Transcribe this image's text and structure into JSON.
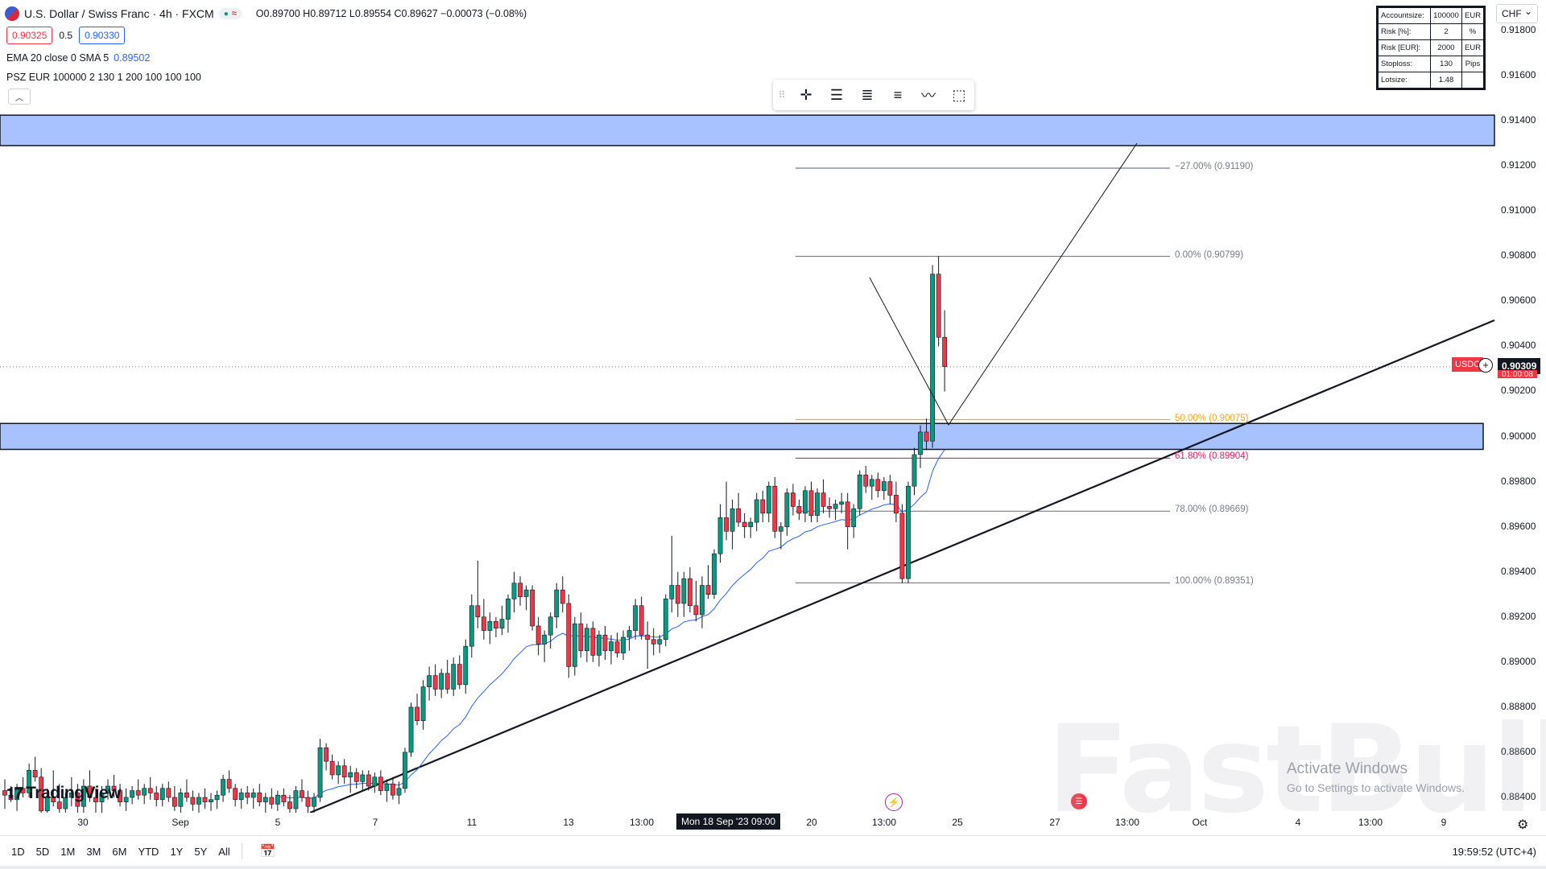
{
  "header": {
    "symbol": "U.S. Dollar / Swiss Franc · 4h · FXCM",
    "ohlc": "O0.89700 H0.89712 L0.89554 C0.89627 −0.00073 (−0.08%)",
    "sell_price": "0.90325",
    "spread": "0.5",
    "buy_price": "0.90330"
  },
  "indicators": {
    "ema_label": "EMA 20 close 0 SMA 5",
    "ema_value": "0.89502",
    "psz_label": "PSZ EUR 100000 2 130 1 200 100 100 100"
  },
  "psz_table": [
    {
      "k": "Accountsize:",
      "v": "100000",
      "u": "EUR"
    },
    {
      "k": "Risk [%]:",
      "v": "2",
      "u": "%"
    },
    {
      "k": "Risk [EUR]:",
      "v": "2000",
      "u": "EUR"
    },
    {
      "k": "Stoploss:",
      "v": "130",
      "u": "Pips"
    },
    {
      "k": "Lotsize:",
      "v": "1.48",
      "u": ""
    }
  ],
  "currency_select": "CHF",
  "y_axis": {
    "ticks": [
      "0.91800",
      "0.91600",
      "0.91400",
      "0.91200",
      "0.91000",
      "0.90800",
      "0.90600",
      "0.90400",
      "0.90200",
      "0.90000",
      "0.89800",
      "0.89600",
      "0.89400",
      "0.89200",
      "0.89000",
      "0.88800",
      "0.88600",
      "0.88400"
    ],
    "last_price": "0.90309",
    "symbol_tag": "USDC",
    "under_price": "01:00:08"
  },
  "x_axis": {
    "ticks": [
      "30",
      "Sep",
      "5",
      "7",
      "11",
      "13",
      "13:00",
      "20",
      "13:00",
      "25",
      "27",
      "13:00",
      "Oct",
      "4",
      "13:00",
      "9"
    ],
    "crosshair_label": "Mon 18 Sep '23   09:00"
  },
  "fib_levels": [
    {
      "label": "−27.00% (0.91190)",
      "price": 0.9119,
      "color": "#787b86"
    },
    {
      "label": "0.00% (0.90799)",
      "price": 0.90799,
      "color": "#787b86"
    },
    {
      "label": "50.00% (0.90075)",
      "price": 0.90075,
      "color": "#f5a623"
    },
    {
      "label": "61.80% (0.89904)",
      "price": 0.89904,
      "color": "#e91e63"
    },
    {
      "label": "78.00% (0.89669)",
      "price": 0.89669,
      "color": "#787b86"
    },
    {
      "label": "100.00% (0.89351)",
      "price": 0.89351,
      "color": "#787b86"
    }
  ],
  "zones": [
    {
      "top": 0.91425,
      "bottom": 0.9129,
      "color": "#a8c1ff"
    },
    {
      "top": 0.90058,
      "bottom": 0.89943,
      "color": "#a8c1ff"
    }
  ],
  "candles": [
    [
      0.8843,
      0.8848,
      0.8835,
      0.8841
    ],
    [
      0.8841,
      0.8845,
      0.8838,
      0.8839
    ],
    [
      0.8839,
      0.8846,
      0.8834,
      0.8844
    ],
    [
      0.8844,
      0.8849,
      0.884,
      0.8842
    ],
    [
      0.8842,
      0.8855,
      0.884,
      0.8852
    ],
    [
      0.8852,
      0.8858,
      0.8847,
      0.8849
    ],
    [
      0.8849,
      0.8853,
      0.883,
      0.8834
    ],
    [
      0.8834,
      0.8844,
      0.8826,
      0.884
    ],
    [
      0.884,
      0.8852,
      0.8836,
      0.8838
    ],
    [
      0.8838,
      0.8846,
      0.8832,
      0.8835
    ],
    [
      0.8835,
      0.8842,
      0.8828,
      0.884
    ],
    [
      0.884,
      0.8849,
      0.8836,
      0.8842
    ],
    [
      0.8842,
      0.8846,
      0.8833,
      0.8836
    ],
    [
      0.8836,
      0.8848,
      0.8831,
      0.8845
    ],
    [
      0.8845,
      0.8852,
      0.8838,
      0.884
    ],
    [
      0.884,
      0.8844,
      0.8832,
      0.8838
    ],
    [
      0.8838,
      0.8845,
      0.8833,
      0.8842
    ],
    [
      0.8842,
      0.8848,
      0.8839,
      0.8845
    ],
    [
      0.8845,
      0.885,
      0.884,
      0.8843
    ],
    [
      0.8843,
      0.8846,
      0.8836,
      0.8838
    ],
    [
      0.8838,
      0.8844,
      0.8834,
      0.884
    ],
    [
      0.884,
      0.8845,
      0.8837,
      0.8843
    ],
    [
      0.8843,
      0.8848,
      0.8839,
      0.8841
    ],
    [
      0.8841,
      0.8846,
      0.8837,
      0.8844
    ],
    [
      0.8844,
      0.8849,
      0.8839,
      0.8842
    ],
    [
      0.8842,
      0.8845,
      0.8836,
      0.8839
    ],
    [
      0.8839,
      0.8846,
      0.8836,
      0.8844
    ],
    [
      0.8844,
      0.8847,
      0.8838,
      0.884
    ],
    [
      0.884,
      0.8845,
      0.8834,
      0.8836
    ],
    [
      0.8836,
      0.8844,
      0.8832,
      0.8842
    ],
    [
      0.8842,
      0.8848,
      0.8838,
      0.884
    ],
    [
      0.884,
      0.8843,
      0.8834,
      0.8837
    ],
    [
      0.8837,
      0.8842,
      0.8833,
      0.884
    ],
    [
      0.884,
      0.8844,
      0.8835,
      0.8838
    ],
    [
      0.8838,
      0.8842,
      0.8834,
      0.8839
    ],
    [
      0.8839,
      0.8843,
      0.8835,
      0.8841
    ],
    [
      0.8841,
      0.885,
      0.8838,
      0.8848
    ],
    [
      0.8848,
      0.8852,
      0.8842,
      0.8844
    ],
    [
      0.8844,
      0.8846,
      0.8836,
      0.8839
    ],
    [
      0.8839,
      0.8844,
      0.8835,
      0.8842
    ],
    [
      0.8842,
      0.8845,
      0.8837,
      0.884
    ],
    [
      0.884,
      0.8844,
      0.8835,
      0.8842
    ],
    [
      0.8842,
      0.8846,
      0.8836,
      0.8838
    ],
    [
      0.8838,
      0.8842,
      0.8833,
      0.884
    ],
    [
      0.884,
      0.8844,
      0.8835,
      0.8837
    ],
    [
      0.8837,
      0.8843,
      0.8834,
      0.8841
    ],
    [
      0.8841,
      0.8844,
      0.8836,
      0.8838
    ],
    [
      0.8838,
      0.8841,
      0.8832,
      0.8835
    ],
    [
      0.8835,
      0.8845,
      0.8831,
      0.8843
    ],
    [
      0.8843,
      0.8848,
      0.8838,
      0.884
    ],
    [
      0.884,
      0.8843,
      0.8833,
      0.8836
    ],
    [
      0.8836,
      0.8842,
      0.8832,
      0.884
    ],
    [
      0.884,
      0.8866,
      0.8838,
      0.8862
    ],
    [
      0.8862,
      0.8864,
      0.8852,
      0.8856
    ],
    [
      0.8856,
      0.8859,
      0.8848,
      0.885
    ],
    [
      0.885,
      0.8856,
      0.8846,
      0.8854
    ],
    [
      0.8854,
      0.8857,
      0.8846,
      0.8849
    ],
    [
      0.8849,
      0.8854,
      0.8842,
      0.8851
    ],
    [
      0.8851,
      0.8853,
      0.8844,
      0.8847
    ],
    [
      0.8847,
      0.8852,
      0.8843,
      0.885
    ],
    [
      0.885,
      0.8852,
      0.8843,
      0.8845
    ],
    [
      0.8845,
      0.8851,
      0.8842,
      0.8849
    ],
    [
      0.8849,
      0.8852,
      0.8841,
      0.8843
    ],
    [
      0.8843,
      0.8848,
      0.8838,
      0.8846
    ],
    [
      0.8846,
      0.8849,
      0.8839,
      0.8841
    ],
    [
      0.8841,
      0.8847,
      0.8837,
      0.8844
    ],
    [
      0.8844,
      0.8862,
      0.8842,
      0.886
    ],
    [
      0.886,
      0.8882,
      0.8858,
      0.888
    ],
    [
      0.888,
      0.8886,
      0.8872,
      0.8874
    ],
    [
      0.8874,
      0.8892,
      0.887,
      0.8889
    ],
    [
      0.8889,
      0.8898,
      0.8883,
      0.8894
    ],
    [
      0.8894,
      0.8899,
      0.8885,
      0.8888
    ],
    [
      0.8888,
      0.8897,
      0.8884,
      0.8895
    ],
    [
      0.8895,
      0.8901,
      0.8886,
      0.8888
    ],
    [
      0.8888,
      0.8902,
      0.8885,
      0.8899
    ],
    [
      0.8899,
      0.8903,
      0.8888,
      0.889
    ],
    [
      0.889,
      0.891,
      0.8886,
      0.8907
    ],
    [
      0.8907,
      0.893,
      0.8902,
      0.8925
    ],
    [
      0.8925,
      0.8945,
      0.8915,
      0.892
    ],
    [
      0.892,
      0.8928,
      0.891,
      0.8914
    ],
    [
      0.8914,
      0.8922,
      0.8908,
      0.8918
    ],
    [
      0.8918,
      0.892,
      0.8911,
      0.8915
    ],
    [
      0.8915,
      0.8925,
      0.8912,
      0.8919
    ],
    [
      0.8919,
      0.893,
      0.8913,
      0.8928
    ],
    [
      0.8928,
      0.894,
      0.8922,
      0.8935
    ],
    [
      0.8935,
      0.8938,
      0.8925,
      0.8929
    ],
    [
      0.8929,
      0.8934,
      0.8923,
      0.8932
    ],
    [
      0.8932,
      0.8934,
      0.8914,
      0.8916
    ],
    [
      0.8916,
      0.892,
      0.8903,
      0.8908
    ],
    [
      0.8908,
      0.8914,
      0.89,
      0.8912
    ],
    [
      0.8912,
      0.8922,
      0.8906,
      0.892
    ],
    [
      0.892,
      0.8935,
      0.8915,
      0.8932
    ],
    [
      0.8932,
      0.8938,
      0.8922,
      0.8926
    ],
    [
      0.8926,
      0.893,
      0.8893,
      0.8898
    ],
    [
      0.8898,
      0.892,
      0.8894,
      0.8917
    ],
    [
      0.8917,
      0.8922,
      0.8902,
      0.8905
    ],
    [
      0.8905,
      0.8917,
      0.89,
      0.8915
    ],
    [
      0.8915,
      0.8918,
      0.89,
      0.8903
    ],
    [
      0.8903,
      0.8914,
      0.8898,
      0.8912
    ],
    [
      0.8912,
      0.8916,
      0.8901,
      0.8905
    ],
    [
      0.8905,
      0.8912,
      0.8899,
      0.8909
    ],
    [
      0.8909,
      0.8913,
      0.8902,
      0.8904
    ],
    [
      0.8904,
      0.8914,
      0.8901,
      0.8911
    ],
    [
      0.8911,
      0.8916,
      0.8905,
      0.8914
    ],
    [
      0.8914,
      0.8928,
      0.891,
      0.8925
    ],
    [
      0.8925,
      0.8929,
      0.891,
      0.8912
    ],
    [
      0.8912,
      0.8918,
      0.8897,
      0.891
    ],
    [
      0.891,
      0.8915,
      0.8903,
      0.8908
    ],
    [
      0.8908,
      0.8912,
      0.8904,
      0.891
    ],
    [
      0.891,
      0.893,
      0.8907,
      0.8928
    ],
    [
      0.8928,
      0.8956,
      0.8922,
      0.8934
    ],
    [
      0.8934,
      0.894,
      0.892,
      0.8926
    ],
    [
      0.8926,
      0.894,
      0.892,
      0.8937
    ],
    [
      0.8937,
      0.8942,
      0.8922,
      0.8925
    ],
    [
      0.8925,
      0.8936,
      0.8918,
      0.8921
    ],
    [
      0.8921,
      0.8938,
      0.8915,
      0.8934
    ],
    [
      0.8934,
      0.8943,
      0.8928,
      0.893
    ],
    [
      0.893,
      0.895,
      0.8928,
      0.8948
    ],
    [
      0.8948,
      0.897,
      0.8944,
      0.8964
    ],
    [
      0.8964,
      0.898,
      0.8954,
      0.8958
    ],
    [
      0.8958,
      0.8972,
      0.895,
      0.8968
    ],
    [
      0.8968,
      0.8975,
      0.896,
      0.8962
    ],
    [
      0.8962,
      0.8966,
      0.8955,
      0.896
    ],
    [
      0.896,
      0.8964,
      0.8955,
      0.8962
    ],
    [
      0.8962,
      0.8975,
      0.8958,
      0.8972
    ],
    [
      0.8972,
      0.8976,
      0.8962,
      0.8966
    ],
    [
      0.8966,
      0.898,
      0.8962,
      0.8978
    ],
    [
      0.8978,
      0.8982,
      0.8955,
      0.8958
    ],
    [
      0.8958,
      0.8962,
      0.895,
      0.896
    ],
    [
      0.896,
      0.8977,
      0.8956,
      0.8975
    ],
    [
      0.8975,
      0.8979,
      0.8965,
      0.8969
    ],
    [
      0.8969,
      0.8972,
      0.8963,
      0.8966
    ],
    [
      0.8966,
      0.8978,
      0.8962,
      0.8976
    ],
    [
      0.8976,
      0.898,
      0.8962,
      0.8965
    ],
    [
      0.8965,
      0.8977,
      0.8962,
      0.8975
    ],
    [
      0.8975,
      0.8981,
      0.8966,
      0.8969
    ],
    [
      0.8969,
      0.8973,
      0.8964,
      0.8968
    ],
    [
      0.8968,
      0.8972,
      0.8963,
      0.897
    ],
    [
      0.897,
      0.8975,
      0.8966,
      0.8971
    ],
    [
      0.8971,
      0.8975,
      0.895,
      0.896
    ],
    [
      0.896,
      0.897,
      0.8955,
      0.8968
    ],
    [
      0.8968,
      0.8985,
      0.8965,
      0.8983
    ],
    [
      0.8983,
      0.8987,
      0.8975,
      0.8978
    ],
    [
      0.8978,
      0.8983,
      0.8972,
      0.8981
    ],
    [
      0.8981,
      0.8984,
      0.8973,
      0.8976
    ],
    [
      0.8976,
      0.8982,
      0.8972,
      0.898
    ],
    [
      0.898,
      0.8983,
      0.897,
      0.8974
    ],
    [
      0.8974,
      0.898,
      0.8962,
      0.8966
    ],
    [
      0.8966,
      0.897,
      0.8935,
      0.8937
    ],
    [
      0.8937,
      0.898,
      0.8935,
      0.8978
    ],
    [
      0.8978,
      0.8995,
      0.8974,
      0.8992
    ],
    [
      0.8992,
      0.9005,
      0.8986,
      0.9002
    ],
    [
      0.9002,
      0.9008,
      0.8994,
      0.8998
    ],
    [
      0.8998,
      0.9076,
      0.8995,
      0.9072
    ],
    [
      0.9072,
      0.908,
      0.904,
      0.9044
    ],
    [
      0.9044,
      0.9056,
      0.902,
      0.9031
    ]
  ],
  "logo_text": "TradingView",
  "watermark_text": "FastBull",
  "activate": {
    "line1": "Activate Windows",
    "line2": "Go to Settings to activate Windows."
  },
  "bottom_bar": {
    "timeframes": [
      "1D",
      "5D",
      "1M",
      "3M",
      "6M",
      "YTD",
      "1Y",
      "5Y",
      "All"
    ],
    "clock": "19:59:52 (UTC+4)"
  }
}
